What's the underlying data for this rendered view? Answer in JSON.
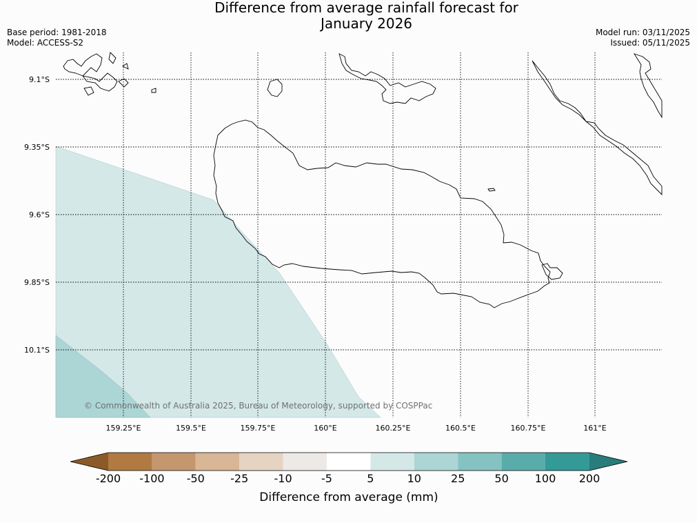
{
  "header": {
    "title_line1": "Difference from average rainfall forecast for",
    "title_line2": "January 2026",
    "base_period": "Base period: 1981-2018",
    "model": "Model: ACCESS-S2",
    "model_run": "Model run: 03/11/2025",
    "issued": "Issued: 05/11/2025"
  },
  "map": {
    "latitudes": [
      "9.1°S",
      "9.35°S",
      "9.6°S",
      "9.85°S",
      "10.1°S"
    ],
    "longitudes": [
      "159.25°E",
      "159.5°E",
      "159.75°E",
      "160°E",
      "160.25°E",
      "160.5°E",
      "160.75°E",
      "161°E"
    ],
    "copyright": "© Commonwealth of Australia 2025, Bureau of Meteorology, supported by COSPPac",
    "regions": [
      {
        "category": "5 to 10",
        "color": "#d4e8e8"
      },
      {
        "category": "10 to 25",
        "color": "#acd5d5"
      }
    ]
  },
  "colorbar": {
    "title": "Difference from average (mm)",
    "ticks": [
      "-200",
      "-100",
      "-50",
      "-25",
      "-10",
      "-5",
      "5",
      "10",
      "25",
      "50",
      "100",
      "200"
    ],
    "colors": [
      "#8c5a28",
      "#b07a42",
      "#c4976e",
      "#d8b696",
      "#e6d3c2",
      "#ede9e6",
      "#ffffff",
      "#d4e8e8",
      "#acd5d5",
      "#84c3c2",
      "#5aacaa",
      "#339a97",
      "#287c7c"
    ]
  }
}
